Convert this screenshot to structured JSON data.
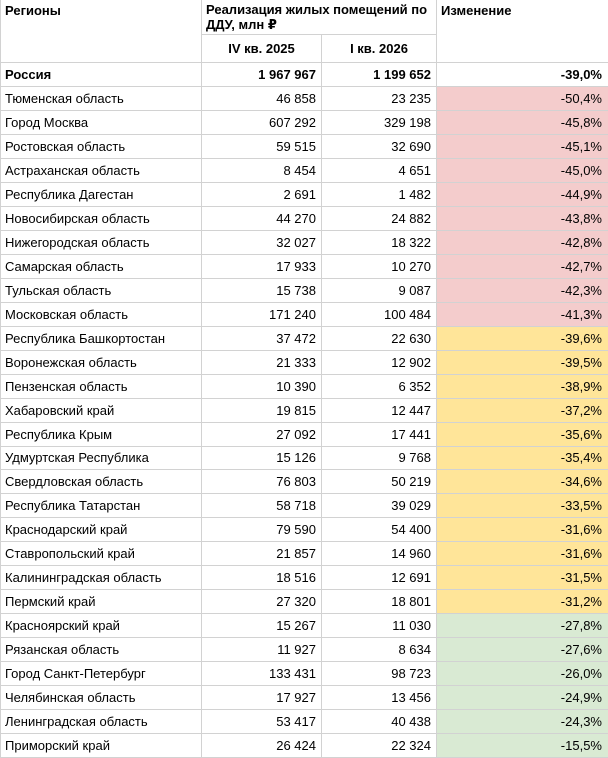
{
  "chart_data": {
    "type": "table",
    "title": "Реализация жилых помещений по ДДУ по регионам",
    "header": {
      "region": "Регионы",
      "group_title": "Реализация жилых помещений по ДДУ, млн ₽",
      "col_q4": "IV кв. 2025",
      "col_q1": "I кв. 2026",
      "change": "Изменение"
    },
    "value_unit": "млн ₽",
    "highlight_colors": {
      "none": "#ffffff",
      "pink": "#f4cccc",
      "yellow": "#ffe599",
      "green": "#d9ead3"
    },
    "grid_color": "#d2d2d2",
    "rows": [
      {
        "region": "Россия",
        "q4_2025": 1967967,
        "q1_2026": 1199652,
        "change_pct": -39.0,
        "highlight": "none",
        "bold": true
      },
      {
        "region": "Тюменская область",
        "q4_2025": 46858,
        "q1_2026": 23235,
        "change_pct": -50.4,
        "highlight": "pink"
      },
      {
        "region": "Город Москва",
        "q4_2025": 607292,
        "q1_2026": 329198,
        "change_pct": -45.8,
        "highlight": "pink"
      },
      {
        "region": "Ростовская область",
        "q4_2025": 59515,
        "q1_2026": 32690,
        "change_pct": -45.1,
        "highlight": "pink"
      },
      {
        "region": "Астраханская область",
        "q4_2025": 8454,
        "q1_2026": 4651,
        "change_pct": -45.0,
        "highlight": "pink"
      },
      {
        "region": "Республика Дагестан",
        "q4_2025": 2691,
        "q1_2026": 1482,
        "change_pct": -44.9,
        "highlight": "pink"
      },
      {
        "region": "Новосибирская область",
        "q4_2025": 44270,
        "q1_2026": 24882,
        "change_pct": -43.8,
        "highlight": "pink"
      },
      {
        "region": "Нижегородская область",
        "q4_2025": 32027,
        "q1_2026": 18322,
        "change_pct": -42.8,
        "highlight": "pink"
      },
      {
        "region": "Самарская область",
        "q4_2025": 17933,
        "q1_2026": 10270,
        "change_pct": -42.7,
        "highlight": "pink"
      },
      {
        "region": "Тульская область",
        "q4_2025": 15738,
        "q1_2026": 9087,
        "change_pct": -42.3,
        "highlight": "pink"
      },
      {
        "region": "Московская область",
        "q4_2025": 171240,
        "q1_2026": 100484,
        "change_pct": -41.3,
        "highlight": "pink"
      },
      {
        "region": "Республика Башкортостан",
        "q4_2025": 37472,
        "q1_2026": 22630,
        "change_pct": -39.6,
        "highlight": "yellow"
      },
      {
        "region": "Воронежская область",
        "q4_2025": 21333,
        "q1_2026": 12902,
        "change_pct": -39.5,
        "highlight": "yellow"
      },
      {
        "region": "Пензенская область",
        "q4_2025": 10390,
        "q1_2026": 6352,
        "change_pct": -38.9,
        "highlight": "yellow"
      },
      {
        "region": "Хабаровский край",
        "q4_2025": 19815,
        "q1_2026": 12447,
        "change_pct": -37.2,
        "highlight": "yellow"
      },
      {
        "region": "Республика Крым",
        "q4_2025": 27092,
        "q1_2026": 17441,
        "change_pct": -35.6,
        "highlight": "yellow"
      },
      {
        "region": "Удмуртская Республика",
        "q4_2025": 15126,
        "q1_2026": 9768,
        "change_pct": -35.4,
        "highlight": "yellow"
      },
      {
        "region": "Свердловская область",
        "q4_2025": 76803,
        "q1_2026": 50219,
        "change_pct": -34.6,
        "highlight": "yellow"
      },
      {
        "region": "Республика Татарстан",
        "q4_2025": 58718,
        "q1_2026": 39029,
        "change_pct": -33.5,
        "highlight": "yellow"
      },
      {
        "region": "Краснодарский край",
        "q4_2025": 79590,
        "q1_2026": 54400,
        "change_pct": -31.6,
        "highlight": "yellow"
      },
      {
        "region": "Ставропольский край",
        "q4_2025": 21857,
        "q1_2026": 14960,
        "change_pct": -31.6,
        "highlight": "yellow"
      },
      {
        "region": "Калининградская область",
        "q4_2025": 18516,
        "q1_2026": 12691,
        "change_pct": -31.5,
        "highlight": "yellow"
      },
      {
        "region": "Пермский край",
        "q4_2025": 27320,
        "q1_2026": 18801,
        "change_pct": -31.2,
        "highlight": "yellow"
      },
      {
        "region": "Красноярский край",
        "q4_2025": 15267,
        "q1_2026": 11030,
        "change_pct": -27.8,
        "highlight": "green"
      },
      {
        "region": "Рязанская область",
        "q4_2025": 11927,
        "q1_2026": 8634,
        "change_pct": -27.6,
        "highlight": "green"
      },
      {
        "region": "Город Санкт-Петербург",
        "q4_2025": 133431,
        "q1_2026": 98723,
        "change_pct": -26.0,
        "highlight": "green"
      },
      {
        "region": "Челябинская область",
        "q4_2025": 17927,
        "q1_2026": 13456,
        "change_pct": -24.9,
        "highlight": "green"
      },
      {
        "region": "Ленинградская область",
        "q4_2025": 53417,
        "q1_2026": 40438,
        "change_pct": -24.3,
        "highlight": "green"
      },
      {
        "region": "Приморский край",
        "q4_2025": 26424,
        "q1_2026": 22324,
        "change_pct": -15.5,
        "highlight": "green"
      }
    ]
  }
}
